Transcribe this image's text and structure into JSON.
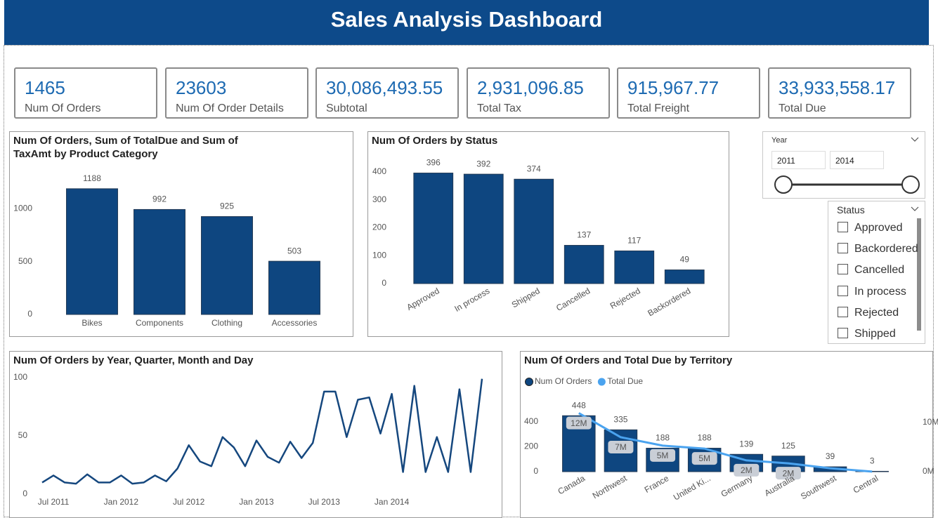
{
  "header": {
    "title": "Sales Analysis Dashboard"
  },
  "kpis": [
    {
      "value": "1465",
      "label": "Num Of Orders"
    },
    {
      "value": "23603",
      "label": "Num Of Order Details"
    },
    {
      "value": "30,086,493.55",
      "label": "Subtotal"
    },
    {
      "value": "2,931,096.85",
      "label": "Total Tax"
    },
    {
      "value": "915,967.77",
      "label": "Total Freight"
    },
    {
      "value": "33,933,558.17",
      "label": "Total Due"
    }
  ],
  "year_slicer": {
    "title": "Year",
    "start": "2011",
    "end": "2014"
  },
  "status_slicer": {
    "title": "Status",
    "items": [
      "Approved",
      "Backordered",
      "Cancelled",
      "In process",
      "Rejected",
      "Shipped"
    ]
  },
  "chart_data": [
    {
      "type": "bar",
      "title": "Num Of Orders, Sum of TotalDue and Sum of TaxAmt by Product Category",
      "categories": [
        "Bikes",
        "Components",
        "Clothing",
        "Accessories"
      ],
      "values": [
        1188,
        992,
        925,
        503
      ],
      "color": "#0e4680",
      "ylim": [
        0,
        1300
      ],
      "yticks": [
        0,
        500,
        1000
      ]
    },
    {
      "type": "bar",
      "title": "Num Of Orders by Status",
      "categories": [
        "Approved",
        "In process",
        "Shipped",
        "Cancelled",
        "Rejected",
        "Backordered"
      ],
      "values": [
        396,
        392,
        374,
        137,
        117,
        49
      ],
      "color": "#0e4680",
      "ylim": [
        0,
        420
      ],
      "yticks": [
        0,
        100,
        200,
        300,
        400
      ]
    },
    {
      "type": "line",
      "title": "Num Of Orders by Year, Quarter, Month and Day",
      "categories": [
        null,
        "Jul 2011",
        null,
        null,
        null,
        null,
        null,
        "Jan 2012",
        null,
        null,
        null,
        null,
        null,
        "Jul 2012",
        null,
        null,
        null,
        null,
        null,
        "Jan 2013",
        null,
        null,
        null,
        null,
        null,
        "Jul 2013",
        null,
        null,
        null,
        null,
        null,
        "Jan 2014",
        null,
        null,
        null,
        null,
        null,
        null,
        null,
        null
      ],
      "values": [
        10,
        16,
        10,
        9,
        17,
        10,
        10,
        16,
        9,
        10,
        16,
        11,
        22,
        42,
        28,
        24,
        49,
        40,
        24,
        46,
        32,
        27,
        45,
        31,
        44,
        88,
        88,
        49,
        81,
        83,
        52,
        86,
        19,
        93,
        19,
        49,
        19,
        90,
        19,
        99
      ],
      "color": "#15477e",
      "ylim": [
        0,
        100
      ],
      "yticks": [
        0,
        50,
        100
      ]
    },
    {
      "type": "combo",
      "title": "Num Of Orders and Total Due by Territory",
      "categories": [
        "Canada",
        "Northwest",
        "France",
        "United Ki...",
        "Germany",
        "Australia",
        "Southwest",
        "Central"
      ],
      "series": [
        {
          "name": "Num Of Orders",
          "type": "bar",
          "color": "#0e4680",
          "values": [
            448,
            335,
            188,
            188,
            139,
            125,
            39,
            3
          ]
        },
        {
          "name": "Total Due",
          "type": "line",
          "axis": "y2",
          "color": "#4aa3ef",
          "values": [
            11900000,
            7000000,
            5300000,
            4700000,
            2300000,
            1700000,
            700000,
            20000
          ],
          "value_labels": [
            "12M",
            "7M",
            "5M",
            "5M",
            "2M",
            "2M",
            null,
            null
          ]
        }
      ],
      "ylim": [
        0,
        500
      ],
      "yticks": [
        0,
        200,
        400
      ],
      "y2lim": [
        0,
        12700000
      ],
      "y2ticks": [
        {
          "value": 0,
          "label": "0M"
        },
        {
          "value": 10000000,
          "label": "10M"
        }
      ]
    }
  ]
}
